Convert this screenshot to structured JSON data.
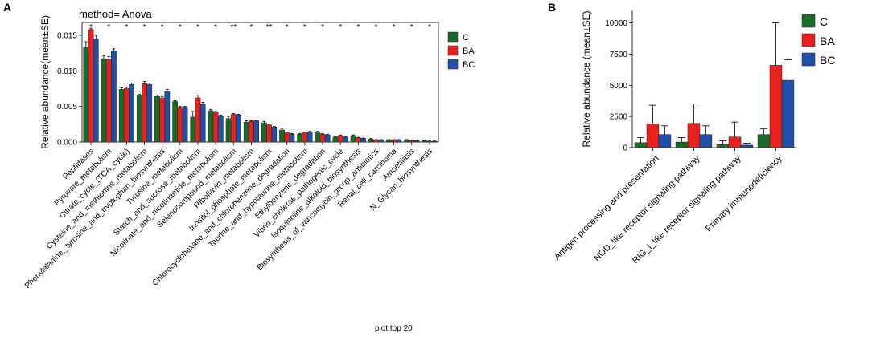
{
  "caption": "plot top 20",
  "colors": {
    "C": "#1a6b2a",
    "BA": "#e8201e",
    "BC": "#1f4fa6"
  },
  "chart_data": [
    {
      "panel": "A",
      "type": "bar",
      "title": "method= Anova",
      "xlabel": "",
      "ylabel": "Relative abundance(mean±SE)",
      "ylim": [
        0,
        0.0168
      ],
      "yticks": [
        0.0,
        0.005,
        0.01,
        0.015
      ],
      "ytick_labels": [
        "0.000",
        "0.005",
        "0.010",
        "0.015"
      ],
      "legend_position": "right",
      "categories": [
        "Peptidases",
        "Pyruvate_metabolism",
        "Citrate_cycle_(TCA_cycle)",
        "Cysteine_and_methionine_metabolism",
        "Phenylalanine,_tyrosine_and_tryptophan_biosynthesis",
        "Tyrosine_metabolism",
        "Starch_and_sucrose_metabolism",
        "Nicotinate_and_nicotinamide_metabolism",
        "Selenocompound_metabolism",
        "Riboflavin_metabolism",
        "Inositol_phosphate_metabolism",
        "Chlorocyclohexane_and_chlorobenzene_degradation",
        "Taurine_and_hypotaurine_metabolism",
        "Ethylbenzene_degradation",
        "Vibrio_cholerae_pathogenic_cycle",
        "Isoquinoline_alkaloid_biosynthesis",
        "Biosynthesis_of_vancomycin_group_antibiotics",
        "Renal_cell_carcinoma",
        "Amoebiasis",
        "N_Glycan_biosynthesis"
      ],
      "significance": [
        "*",
        "*",
        "*",
        "*",
        "*",
        "*",
        "*",
        "*",
        "**",
        "*",
        "**",
        "*",
        "*",
        "*",
        "*",
        "*",
        "*",
        "*",
        "*",
        "*"
      ],
      "series": [
        {
          "name": "C",
          "values": [
            0.0133,
            0.0117,
            0.0074,
            0.0066,
            0.0064,
            0.0057,
            0.0035,
            0.0044,
            0.0033,
            0.0028,
            0.0027,
            0.0017,
            0.0011,
            0.0014,
            0.0007,
            0.0009,
            0.0004,
            0.0003,
            0.0003,
            0.0002
          ],
          "errors": [
            0.0008,
            0.0004,
            0.0002,
            0.0001,
            0.0002,
            0.0001,
            0.0008,
            0.0002,
            0.0003,
            0.0002,
            0.0002,
            0.0002,
            0.0001,
            0.0001,
            0.0001,
            0.0001,
            0.0001,
            5e-05,
            5e-05,
            5e-05
          ]
        },
        {
          "name": "BA",
          "values": [
            0.0158,
            0.0116,
            0.0075,
            0.0082,
            0.0062,
            0.0049,
            0.0062,
            0.0042,
            0.0039,
            0.0029,
            0.0024,
            0.0013,
            0.0013,
            0.0011,
            0.0009,
            0.0006,
            0.0003,
            0.0003,
            0.0002,
            0.0001
          ],
          "errors": [
            0.0002,
            0.0004,
            0.0002,
            0.0003,
            0.0002,
            0.0001,
            0.0004,
            0.0001,
            0.0001,
            0.0001,
            0.0001,
            0.0001,
            0.0001,
            0.0001,
            0.0001,
            5e-05,
            5e-05,
            5e-05,
            5e-05,
            5e-05
          ]
        },
        {
          "name": "BC",
          "values": [
            0.0145,
            0.0128,
            0.0081,
            0.0081,
            0.0071,
            0.0049,
            0.0053,
            0.0037,
            0.0038,
            0.003,
            0.0021,
            0.0011,
            0.0014,
            0.001,
            0.0007,
            0.0005,
            0.0003,
            0.0003,
            0.0002,
            0.0001
          ],
          "errors": [
            0.0005,
            0.0003,
            0.0002,
            0.0002,
            0.0003,
            0.0001,
            0.0003,
            0.0001,
            0.0001,
            0.0001,
            0.0001,
            0.0001,
            0.0001,
            0.0001,
            0.0001,
            5e-05,
            5e-05,
            5e-05,
            5e-05,
            5e-05
          ]
        }
      ]
    },
    {
      "panel": "B",
      "type": "bar",
      "title": "",
      "xlabel": "",
      "ylabel": "Relative abundance (mean±SE)",
      "ylim": [
        0,
        11000
      ],
      "yticks": [
        0,
        2500,
        5000,
        7500,
        10000
      ],
      "ytick_labels": [
        "0",
        "2500",
        "5000",
        "7500",
        "10000"
      ],
      "legend_position": "top-right",
      "categories": [
        "Antigen processing and presentation",
        "NOD_like receptor signaling pathway",
        "RIG_I_like receptor signaling pathway",
        "Primary immunodeficiency"
      ],
      "series": [
        {
          "name": "C",
          "values": [
            400,
            450,
            250,
            1050
          ],
          "errors": [
            400,
            350,
            300,
            450
          ]
        },
        {
          "name": "BA",
          "values": [
            1900,
            1950,
            850,
            6600
          ],
          "errors": [
            1500,
            1550,
            1200,
            3400
          ]
        },
        {
          "name": "BC",
          "values": [
            1050,
            1050,
            200,
            5400
          ],
          "errors": [
            700,
            700,
            150,
            1650
          ]
        }
      ]
    }
  ]
}
